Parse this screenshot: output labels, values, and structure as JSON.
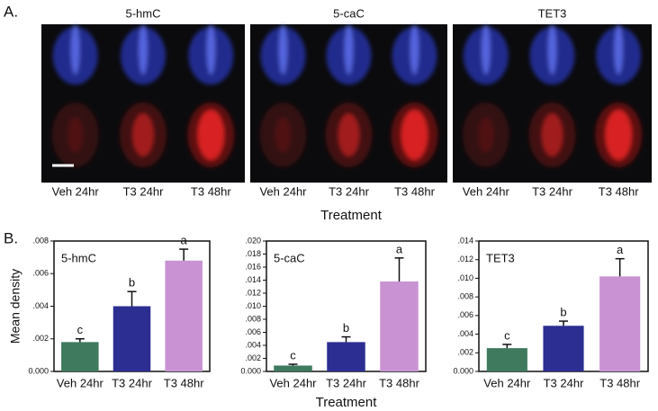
{
  "panel_a": {
    "label": "A.",
    "titles": [
      "5-hmC",
      "5-caC",
      "TET3"
    ],
    "categories": [
      "Veh 24hr",
      "T3 24hr",
      "T3 48hr"
    ],
    "xlabel": "Treatment"
  },
  "panel_b": {
    "label": "B."
  },
  "chart_data": [
    {
      "type": "bar",
      "title": "5-hmC",
      "ylabel": "Mean density",
      "categories": [
        "Veh 24hr",
        "T3 24hr",
        "T3 48hr"
      ],
      "values": [
        0.0018,
        0.004,
        0.0068
      ],
      "errors": [
        0.0002,
        0.0009,
        0.0007
      ],
      "annotations": [
        "c",
        "b",
        "a"
      ],
      "colors": [
        "#3f7a5e",
        "#2c2e92",
        "#c993d3"
      ],
      "ylim": [
        0,
        0.008
      ],
      "yticks": [
        {
          "value": 0,
          "label": "0.000"
        },
        {
          "value": 0.002,
          "label": ".002"
        },
        {
          "value": 0.004,
          "label": ".004"
        },
        {
          "value": 0.006,
          "label": ".006"
        },
        {
          "value": 0.008,
          "label": ".008"
        }
      ]
    },
    {
      "type": "bar",
      "title": "5-caC",
      "xlabel": "Treatment",
      "categories": [
        "Veh 24hr",
        "T3 24hr",
        "T3 48hr"
      ],
      "values": [
        0.0009,
        0.0045,
        0.0138
      ],
      "errors": [
        0.0002,
        0.0008,
        0.0036
      ],
      "annotations": [
        "c",
        "b",
        "a"
      ],
      "colors": [
        "#3f7a5e",
        "#2c2e92",
        "#c993d3"
      ],
      "ylim": [
        0,
        0.02
      ],
      "yticks": [
        {
          "value": 0,
          "label": "0.000"
        },
        {
          "value": 0.002,
          "label": ".002"
        },
        {
          "value": 0.004,
          "label": ".004"
        },
        {
          "value": 0.006,
          "label": ".006"
        },
        {
          "value": 0.008,
          "label": ".008"
        },
        {
          "value": 0.01,
          "label": ".010"
        },
        {
          "value": 0.012,
          "label": ".012"
        },
        {
          "value": 0.014,
          "label": ".014"
        },
        {
          "value": 0.016,
          "label": ".016"
        },
        {
          "value": 0.018,
          "label": ".018"
        },
        {
          "value": 0.02,
          "label": ".020"
        }
      ]
    },
    {
      "type": "bar",
      "title": "TET3",
      "categories": [
        "Veh 24hr",
        "T3 24hr",
        "T3 48hr"
      ],
      "values": [
        0.0025,
        0.0049,
        0.0102
      ],
      "errors": [
        0.0004,
        0.0005,
        0.0019
      ],
      "annotations": [
        "c",
        "b",
        "a"
      ],
      "colors": [
        "#3f7a5e",
        "#2c2e92",
        "#c993d3"
      ],
      "ylim": [
        0,
        0.014
      ],
      "yticks": [
        {
          "value": 0,
          "label": "0.000"
        },
        {
          "value": 0.002,
          "label": ".002"
        },
        {
          "value": 0.004,
          "label": ".004"
        },
        {
          "value": 0.006,
          "label": ".006"
        },
        {
          "value": 0.008,
          "label": ".008"
        },
        {
          "value": 0.01,
          "label": ".010"
        },
        {
          "value": 0.012,
          "label": ".012"
        },
        {
          "value": 0.014,
          "label": ".014"
        }
      ]
    }
  ]
}
